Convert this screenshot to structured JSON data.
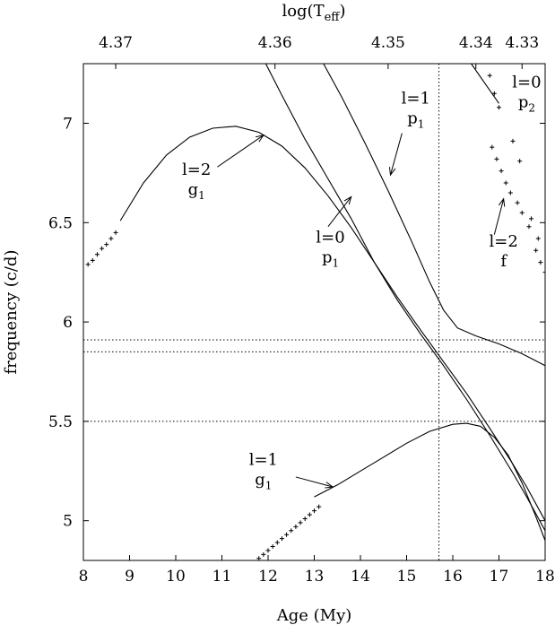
{
  "chart_data": {
    "type": "line",
    "xlabel": "Age (My)",
    "ylabel": "frequency (c/d)",
    "top_xlabel_main": "log(T",
    "top_xlabel_sub": "eff",
    "top_xlabel_close": ")",
    "xlim": [
      8,
      18
    ],
    "ylim": [
      4.8,
      7.3
    ],
    "x_ticks": [
      8,
      9,
      10,
      11,
      12,
      13,
      14,
      15,
      16,
      17,
      18
    ],
    "y_ticks": [
      5,
      5.5,
      6,
      6.5,
      7
    ],
    "top_ticks": [
      {
        "x": 8.7,
        "label": "4.37"
      },
      {
        "x": 12.15,
        "label": "4.36"
      },
      {
        "x": 14.6,
        "label": "4.35"
      },
      {
        "x": 16.5,
        "label": "4.34"
      },
      {
        "x": 17.5,
        "label": "4.33"
      }
    ],
    "reference_lines": {
      "horizontal": [
        5.5,
        5.85,
        5.91
      ],
      "vertical": [
        15.7
      ]
    },
    "series": [
      {
        "mode": "l=2 g1",
        "style": "line",
        "points": [
          [
            8.8,
            6.51
          ],
          [
            9.3,
            6.7
          ],
          [
            9.8,
            6.84
          ],
          [
            10.3,
            6.93
          ],
          [
            10.8,
            6.975
          ],
          [
            11.3,
            6.985
          ],
          [
            11.8,
            6.955
          ],
          [
            12.3,
            6.885
          ],
          [
            12.8,
            6.775
          ],
          [
            13.3,
            6.635
          ],
          [
            13.8,
            6.475
          ],
          [
            14.3,
            6.3
          ],
          [
            14.8,
            6.125
          ],
          [
            15.3,
            5.96
          ],
          [
            15.8,
            5.8
          ],
          [
            16.3,
            5.64
          ],
          [
            16.8,
            5.465
          ],
          [
            17.3,
            5.285
          ],
          [
            17.6,
            5.17
          ],
          [
            18.0,
            5.0
          ]
        ]
      },
      {
        "mode": "l=2 g1 (dotted)",
        "style": "dots",
        "points": [
          [
            8.1,
            6.29
          ],
          [
            8.2,
            6.31
          ],
          [
            8.3,
            6.34
          ],
          [
            8.4,
            6.37
          ],
          [
            8.5,
            6.39
          ],
          [
            8.6,
            6.42
          ],
          [
            8.7,
            6.45
          ]
        ]
      },
      {
        "mode": "l=0 p1",
        "style": "line",
        "points": [
          [
            11.95,
            7.3
          ],
          [
            12.3,
            7.14
          ],
          [
            12.8,
            6.92
          ],
          [
            13.3,
            6.72
          ],
          [
            13.8,
            6.52
          ],
          [
            14.3,
            6.3
          ],
          [
            14.8,
            6.11
          ],
          [
            15.3,
            5.94
          ],
          [
            15.8,
            5.78
          ],
          [
            16.3,
            5.61
          ],
          [
            16.8,
            5.43
          ],
          [
            17.3,
            5.24
          ],
          [
            17.6,
            5.12
          ],
          [
            18.0,
            4.95
          ]
        ]
      },
      {
        "mode": "l=1 p1",
        "style": "line",
        "points": [
          [
            13.2,
            7.3
          ],
          [
            13.6,
            7.13
          ],
          [
            14.1,
            6.9
          ],
          [
            14.6,
            6.66
          ],
          [
            15.1,
            6.41
          ],
          [
            15.5,
            6.2
          ],
          [
            15.8,
            6.06
          ],
          [
            16.1,
            5.97
          ],
          [
            16.5,
            5.93
          ],
          [
            17.0,
            5.89
          ],
          [
            17.5,
            5.84
          ],
          [
            18.0,
            5.78
          ]
        ]
      },
      {
        "mode": "l=1 g1",
        "style": "line",
        "points": [
          [
            13.0,
            5.12
          ],
          [
            13.5,
            5.18
          ],
          [
            14.0,
            5.25
          ],
          [
            14.5,
            5.32
          ],
          [
            15.0,
            5.39
          ],
          [
            15.5,
            5.45
          ],
          [
            16.0,
            5.485
          ],
          [
            16.3,
            5.49
          ],
          [
            16.6,
            5.475
          ],
          [
            16.9,
            5.42
          ],
          [
            17.2,
            5.33
          ],
          [
            17.5,
            5.19
          ],
          [
            17.8,
            5.02
          ],
          [
            18.0,
            4.9
          ]
        ]
      },
      {
        "mode": "l=1 g1 (dotted)",
        "style": "dots",
        "points": [
          [
            11.8,
            4.81
          ],
          [
            11.9,
            4.83
          ],
          [
            12.0,
            4.85
          ],
          [
            12.1,
            4.87
          ],
          [
            12.2,
            4.89
          ],
          [
            12.3,
            4.91
          ],
          [
            12.4,
            4.93
          ],
          [
            12.5,
            4.95
          ],
          [
            12.6,
            4.97
          ],
          [
            12.7,
            4.99
          ],
          [
            12.8,
            5.01
          ],
          [
            12.9,
            5.03
          ],
          [
            13.0,
            5.05
          ],
          [
            13.1,
            5.07
          ]
        ]
      },
      {
        "mode": "l=2 f",
        "style": "line",
        "points": [
          [
            16.4,
            7.3
          ],
          [
            16.7,
            7.2
          ],
          [
            17.0,
            7.1
          ]
        ]
      },
      {
        "mode": "l=2 f (dotted)",
        "style": "dots",
        "points": [
          [
            16.8,
            7.24
          ],
          [
            16.9,
            7.15
          ],
          [
            17.0,
            7.08
          ],
          [
            16.85,
            6.88
          ],
          [
            16.95,
            6.82
          ],
          [
            17.05,
            6.76
          ],
          [
            17.15,
            6.7
          ],
          [
            17.25,
            6.65
          ],
          [
            17.4,
            6.6
          ]
        ]
      },
      {
        "mode": "l=0 p2 (dotted)",
        "style": "dots",
        "points": [
          [
            17.3,
            6.91
          ],
          [
            17.45,
            6.81
          ],
          [
            17.5,
            6.55
          ],
          [
            17.65,
            6.48
          ],
          [
            17.7,
            6.52
          ],
          [
            17.85,
            6.42
          ],
          [
            17.8,
            6.36
          ],
          [
            17.9,
            6.3
          ],
          [
            18.0,
            6.25
          ]
        ]
      }
    ],
    "annotations": [
      {
        "id": "l2g1",
        "line1": "l=2",
        "line2": "g",
        "sub": "1",
        "x": 10.45,
        "y": 6.74
      },
      {
        "id": "l0p1",
        "line1": "l=0",
        "line2": "p",
        "sub": "1",
        "x": 13.35,
        "y": 6.4
      },
      {
        "id": "l1p1",
        "line1": "l=1",
        "line2": "p",
        "sub": "1",
        "x": 15.2,
        "y": 7.1
      },
      {
        "id": "l0p2",
        "line1": "l=0",
        "line2": "p",
        "sub": "2",
        "x": 17.6,
        "y": 7.18
      },
      {
        "id": "l2f",
        "line1": "l=2",
        "line2": "f",
        "sub": "",
        "x": 17.1,
        "y": 6.38
      },
      {
        "id": "l1g1",
        "line1": "l=1",
        "line2": "g",
        "sub": "1",
        "x": 11.9,
        "y": 5.28
      }
    ],
    "arrows": [
      {
        "id": "arrow-l2g1",
        "from": [
          10.9,
          6.78
        ],
        "to": [
          11.9,
          6.94
        ]
      },
      {
        "id": "arrow-l0p1",
        "from": [
          13.3,
          6.48
        ],
        "to": [
          13.8,
          6.63
        ]
      },
      {
        "id": "arrow-l1p1",
        "from": [
          14.9,
          6.95
        ],
        "to": [
          14.65,
          6.74
        ]
      },
      {
        "id": "arrow-l2f",
        "from": [
          16.9,
          6.44
        ],
        "to": [
          17.1,
          6.62
        ]
      },
      {
        "id": "arrow-l1g1",
        "from": [
          12.6,
          5.22
        ],
        "to": [
          13.4,
          5.17
        ]
      }
    ]
  }
}
